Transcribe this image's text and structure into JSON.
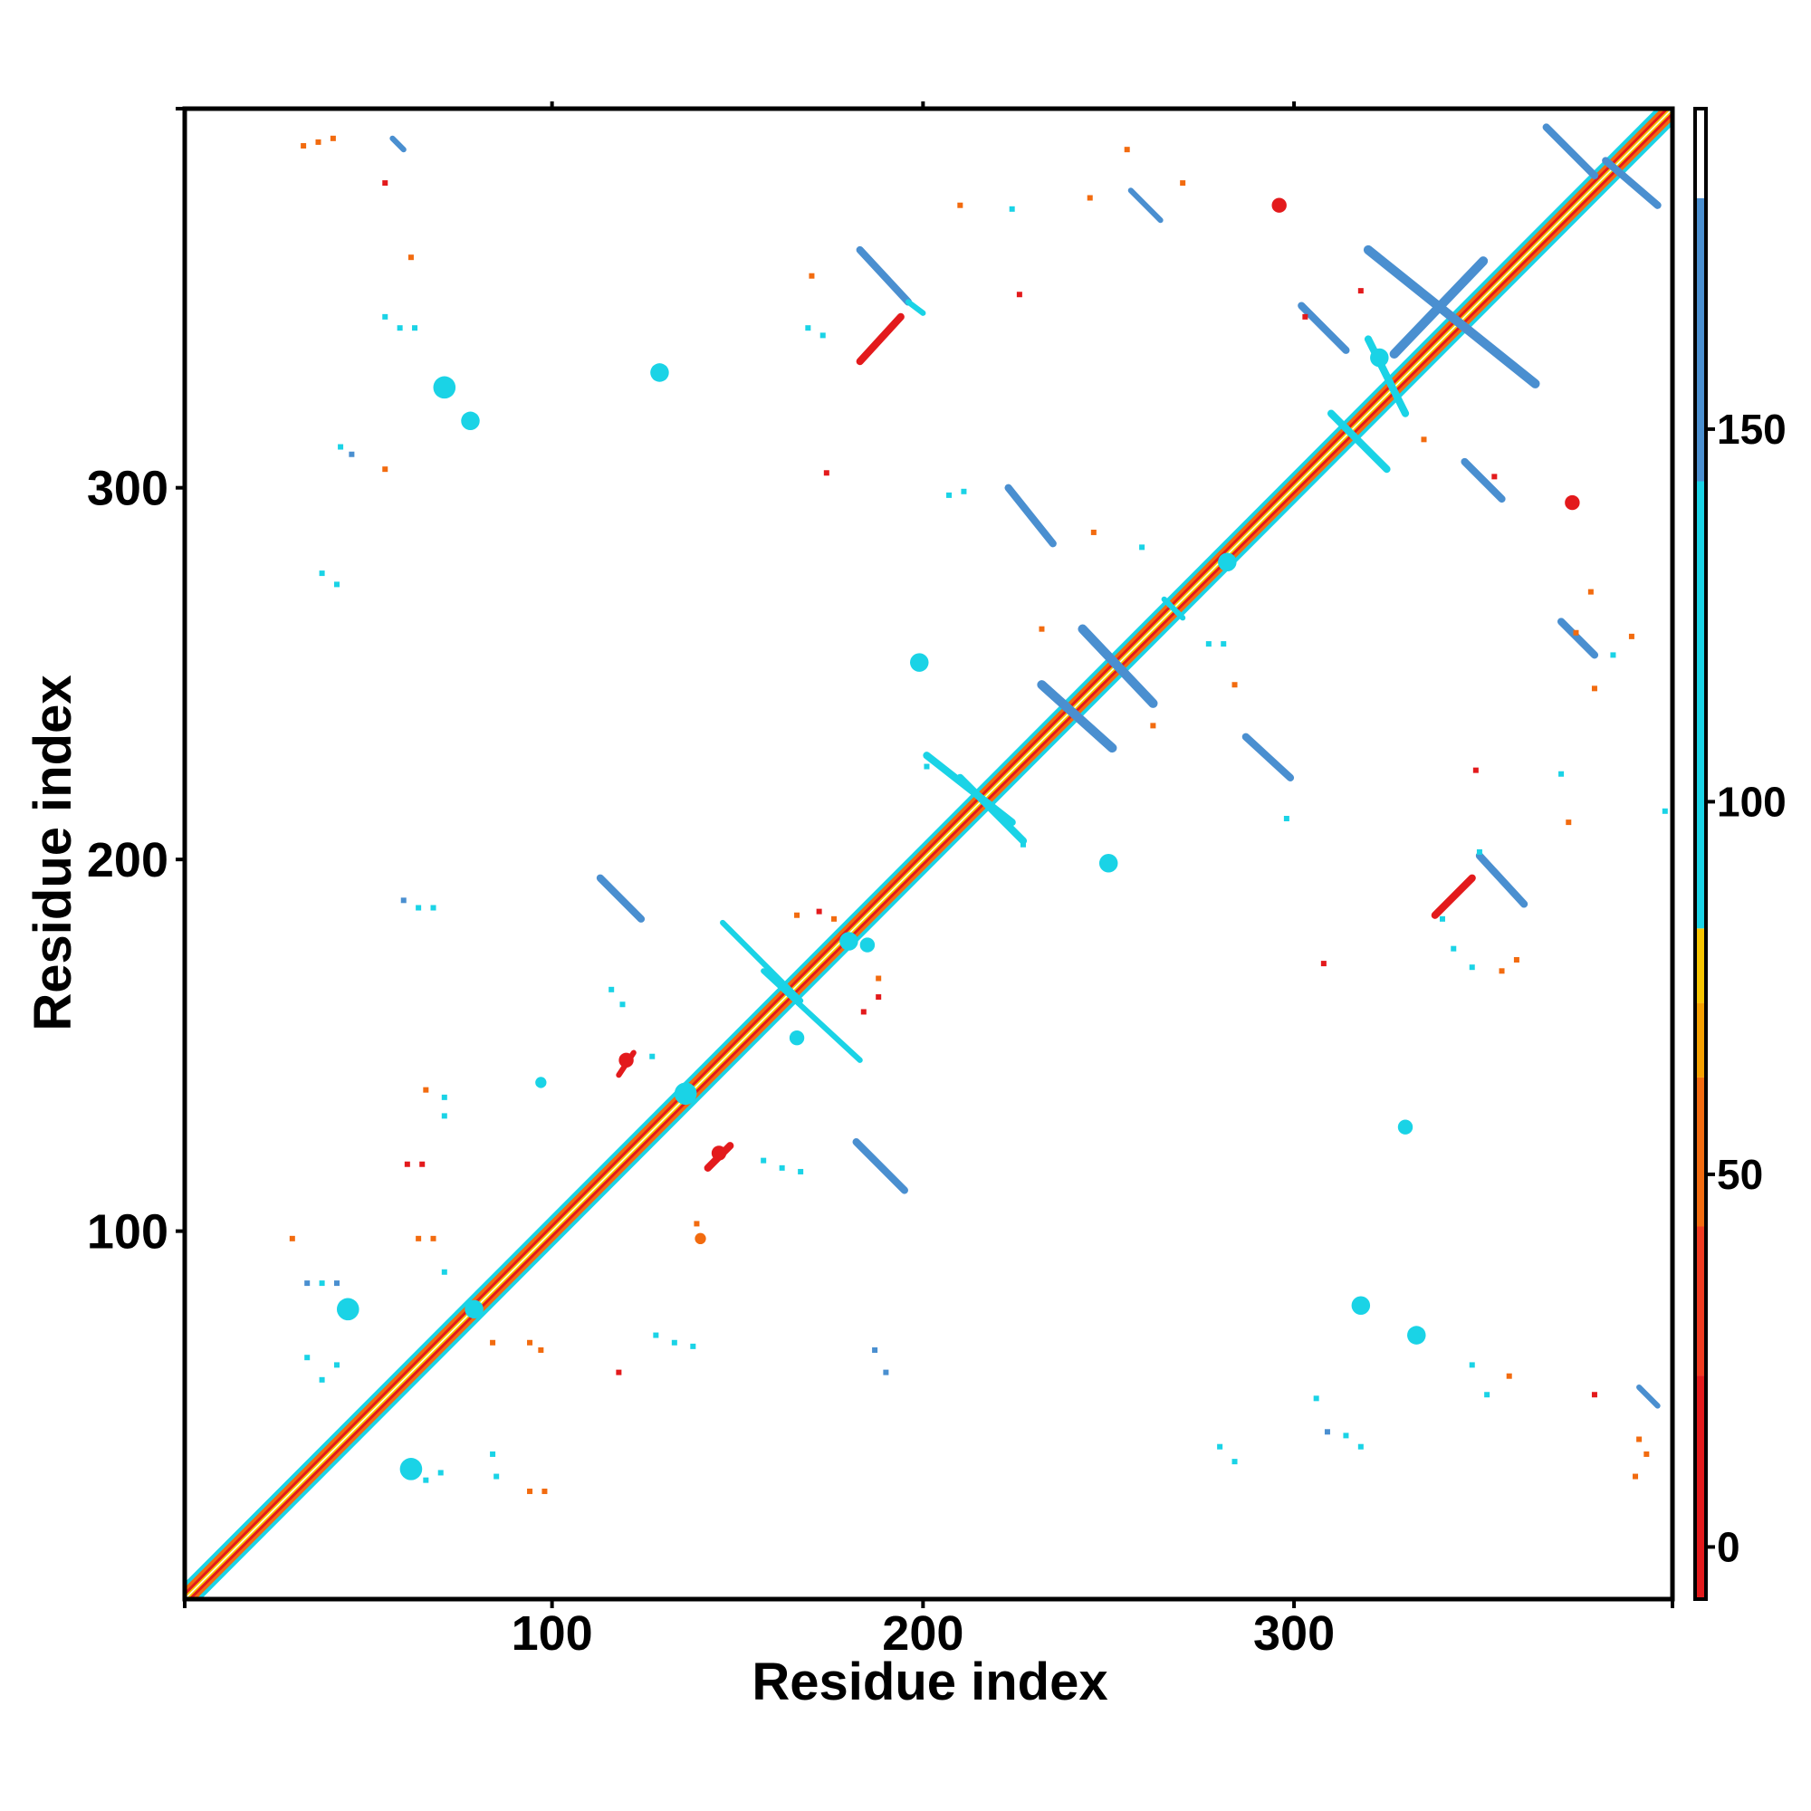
{
  "chart_data": {
    "type": "heatmap",
    "title": "",
    "xlabel": "Residue index",
    "ylabel": "Residue index",
    "xlim": [
      1,
      402
    ],
    "ylim": [
      1,
      402
    ],
    "x_ticks": [
      100,
      200,
      300
    ],
    "y_ticks": [
      100,
      200,
      300
    ],
    "grid": false,
    "legend": "right",
    "colorbar": {
      "ticks": [
        0,
        50,
        100,
        150
      ],
      "range": [
        -7,
        193
      ],
      "bands": [
        {
          "from": -7,
          "to": 23,
          "color": "#e31a1c"
        },
        {
          "from": 23,
          "to": 43,
          "color": "#f03b20"
        },
        {
          "from": 43,
          "to": 63,
          "color": "#f26b0f"
        },
        {
          "from": 63,
          "to": 73,
          "color": "#f5a000"
        },
        {
          "from": 73,
          "to": 83,
          "color": "#f7c500"
        },
        {
          "from": 83,
          "to": 143,
          "color": "#1ad3e6"
        },
        {
          "from": 143,
          "to": 181,
          "color": "#4a8fd0"
        },
        {
          "from": 181,
          "to": 193,
          "color": "#ffffff"
        }
      ]
    },
    "colors": {
      "red": "#e31a1c",
      "orange": "#f26b0f",
      "yellow": "#f7c500",
      "cyan": "#1ad3e6",
      "blue": "#4a8fd0"
    },
    "diagonal": {
      "from": 1,
      "to": 402
    },
    "segments": [
      {
        "x0": 57,
        "y0": 394,
        "x1": 60,
        "y1": 391,
        "color": "blue",
        "w": 1.5
      },
      {
        "x0": 368,
        "y0": 397,
        "x1": 381,
        "y1": 384,
        "color": "blue",
        "w": 2
      },
      {
        "x0": 384,
        "y0": 388,
        "x1": 398,
        "y1": 376,
        "color": "blue",
        "w": 2
      },
      {
        "x0": 256,
        "y0": 380,
        "x1": 264,
        "y1": 372,
        "color": "blue",
        "w": 1.5
      },
      {
        "x0": 183,
        "y0": 364,
        "x1": 196,
        "y1": 350,
        "color": "blue",
        "w": 2
      },
      {
        "x0": 196,
        "y0": 350,
        "x1": 200,
        "y1": 347,
        "color": "cyan",
        "w": 1.5
      },
      {
        "x0": 183,
        "y0": 334,
        "x1": 194,
        "y1": 346,
        "color": "red",
        "w": 2
      },
      {
        "x0": 320,
        "y0": 364,
        "x1": 365,
        "y1": 328,
        "color": "blue",
        "w": 2.5
      },
      {
        "x0": 327,
        "y0": 336,
        "x1": 351,
        "y1": 361,
        "color": "blue",
        "w": 2.5
      },
      {
        "x0": 302,
        "y0": 349,
        "x1": 314,
        "y1": 337,
        "color": "blue",
        "w": 2
      },
      {
        "x0": 346,
        "y0": 307,
        "x1": 356,
        "y1": 297,
        "color": "blue",
        "w": 2
      },
      {
        "x0": 223,
        "y0": 300,
        "x1": 235,
        "y1": 285,
        "color": "blue",
        "w": 2
      },
      {
        "x0": 243,
        "y0": 262,
        "x1": 262,
        "y1": 242,
        "color": "blue",
        "w": 2.5
      },
      {
        "x0": 232,
        "y0": 247,
        "x1": 251,
        "y1": 230,
        "color": "blue",
        "w": 2.5
      },
      {
        "x0": 372,
        "y0": 264,
        "x1": 381,
        "y1": 255,
        "color": "blue",
        "w": 2
      },
      {
        "x0": 287,
        "y0": 233,
        "x1": 299,
        "y1": 222,
        "color": "blue",
        "w": 2
      },
      {
        "x0": 201,
        "y0": 228,
        "x1": 224,
        "y1": 210,
        "color": "cyan",
        "w": 2
      },
      {
        "x0": 210,
        "y0": 222,
        "x1": 227,
        "y1": 205,
        "color": "cyan",
        "w": 2
      },
      {
        "x0": 113,
        "y0": 195,
        "x1": 124,
        "y1": 184,
        "color": "blue",
        "w": 2
      },
      {
        "x0": 350,
        "y0": 201,
        "x1": 362,
        "y1": 188,
        "color": "blue",
        "w": 2
      },
      {
        "x0": 338,
        "y0": 185,
        "x1": 348,
        "y1": 195,
        "color": "red",
        "w": 2
      },
      {
        "x0": 182,
        "y0": 124,
        "x1": 195,
        "y1": 111,
        "color": "blue",
        "w": 2
      },
      {
        "x0": 142,
        "y0": 117,
        "x1": 148,
        "y1": 123,
        "color": "red",
        "w": 2
      },
      {
        "x0": 118,
        "y0": 142,
        "x1": 122,
        "y1": 148,
        "color": "red",
        "w": 1.5
      },
      {
        "x0": 146,
        "y0": 183,
        "x1": 167,
        "y1": 162,
        "color": "cyan",
        "w": 1.5
      },
      {
        "x0": 157,
        "y0": 170,
        "x1": 183,
        "y1": 146,
        "color": "cyan",
        "w": 1.5
      },
      {
        "x0": 320,
        "y0": 340,
        "x1": 330,
        "y1": 320,
        "color": "cyan",
        "w": 2
      },
      {
        "x0": 310,
        "y0": 320,
        "x1": 325,
        "y1": 305,
        "color": "cyan",
        "w": 2
      },
      {
        "x0": 393,
        "y0": 58,
        "x1": 398,
        "y1": 53,
        "color": "blue",
        "w": 1.5
      },
      {
        "x0": 265,
        "y0": 270,
        "x1": 270,
        "y1": 265,
        "color": "cyan",
        "w": 1.5
      }
    ],
    "blobs": [
      {
        "x": 71,
        "y": 327,
        "r": 3,
        "color": "cyan"
      },
      {
        "x": 78,
        "y": 318,
        "r": 2.5,
        "color": "cyan"
      },
      {
        "x": 129,
        "y": 331,
        "r": 2.5,
        "color": "cyan"
      },
      {
        "x": 199,
        "y": 253,
        "r": 2.5,
        "color": "cyan"
      },
      {
        "x": 250,
        "y": 199,
        "r": 2.5,
        "color": "cyan"
      },
      {
        "x": 330,
        "y": 128,
        "r": 2,
        "color": "cyan"
      },
      {
        "x": 318,
        "y": 80,
        "r": 2.5,
        "color": "cyan"
      },
      {
        "x": 333,
        "y": 72,
        "r": 2.5,
        "color": "cyan"
      },
      {
        "x": 296,
        "y": 376,
        "r": 2,
        "color": "red"
      },
      {
        "x": 375,
        "y": 296,
        "r": 2,
        "color": "red"
      },
      {
        "x": 145,
        "y": 121,
        "r": 2,
        "color": "red"
      },
      {
        "x": 120,
        "y": 146,
        "r": 2,
        "color": "red"
      },
      {
        "x": 45,
        "y": 79,
        "r": 3,
        "color": "cyan"
      },
      {
        "x": 62,
        "y": 36,
        "r": 3,
        "color": "cyan"
      },
      {
        "x": 79,
        "y": 79,
        "r": 2.5,
        "color": "cyan"
      },
      {
        "x": 136,
        "y": 137,
        "r": 3,
        "color": "cyan"
      },
      {
        "x": 137,
        "y": 137,
        "r": 2,
        "color": "cyan"
      },
      {
        "x": 180,
        "y": 178,
        "r": 2.5,
        "color": "cyan"
      },
      {
        "x": 185,
        "y": 177,
        "r": 2,
        "color": "cyan"
      },
      {
        "x": 166,
        "y": 152,
        "r": 2,
        "color": "cyan"
      },
      {
        "x": 140,
        "y": 98,
        "r": 1.5,
        "color": "orange"
      },
      {
        "x": 97,
        "y": 140,
        "r": 1.5,
        "color": "cyan"
      },
      {
        "x": 282,
        "y": 280,
        "r": 2.5,
        "color": "cyan"
      },
      {
        "x": 323,
        "y": 335,
        "r": 2.5,
        "color": "cyan"
      }
    ],
    "specks": [
      {
        "x": 33,
        "y": 392,
        "color": "orange"
      },
      {
        "x": 37,
        "y": 393,
        "color": "orange"
      },
      {
        "x": 41,
        "y": 394,
        "color": "orange"
      },
      {
        "x": 55,
        "y": 382,
        "color": "red"
      },
      {
        "x": 62,
        "y": 362,
        "color": "orange"
      },
      {
        "x": 55,
        "y": 346,
        "color": "cyan"
      },
      {
        "x": 59,
        "y": 343,
        "color": "cyan"
      },
      {
        "x": 63,
        "y": 343,
        "color": "cyan"
      },
      {
        "x": 43,
        "y": 311,
        "color": "cyan"
      },
      {
        "x": 46,
        "y": 309,
        "color": "blue"
      },
      {
        "x": 55,
        "y": 305,
        "color": "orange"
      },
      {
        "x": 38,
        "y": 277,
        "color": "cyan"
      },
      {
        "x": 42,
        "y": 274,
        "color": "cyan"
      },
      {
        "x": 210,
        "y": 376,
        "color": "orange"
      },
      {
        "x": 224,
        "y": 375,
        "color": "cyan"
      },
      {
        "x": 245,
        "y": 378,
        "color": "orange"
      },
      {
        "x": 255,
        "y": 391,
        "color": "orange"
      },
      {
        "x": 270,
        "y": 382,
        "color": "orange"
      },
      {
        "x": 226,
        "y": 352,
        "color": "red"
      },
      {
        "x": 170,
        "y": 357,
        "color": "orange"
      },
      {
        "x": 169,
        "y": 343,
        "color": "cyan"
      },
      {
        "x": 173,
        "y": 341,
        "color": "cyan"
      },
      {
        "x": 174,
        "y": 304,
        "color": "red"
      },
      {
        "x": 207,
        "y": 298,
        "color": "cyan"
      },
      {
        "x": 211,
        "y": 299,
        "color": "cyan"
      },
      {
        "x": 246,
        "y": 288,
        "color": "orange"
      },
      {
        "x": 259,
        "y": 284,
        "color": "cyan"
      },
      {
        "x": 232,
        "y": 262,
        "color": "orange"
      },
      {
        "x": 262,
        "y": 236,
        "color": "orange"
      },
      {
        "x": 277,
        "y": 258,
        "color": "cyan"
      },
      {
        "x": 281,
        "y": 258,
        "color": "cyan"
      },
      {
        "x": 284,
        "y": 247,
        "color": "orange"
      },
      {
        "x": 298,
        "y": 211,
        "color": "cyan"
      },
      {
        "x": 335,
        "y": 313,
        "color": "orange"
      },
      {
        "x": 354,
        "y": 303,
        "color": "red"
      },
      {
        "x": 303,
        "y": 346,
        "color": "red"
      },
      {
        "x": 318,
        "y": 353,
        "color": "red"
      },
      {
        "x": 380,
        "y": 272,
        "color": "orange"
      },
      {
        "x": 376,
        "y": 261,
        "color": "orange"
      },
      {
        "x": 391,
        "y": 260,
        "color": "orange"
      },
      {
        "x": 386,
        "y": 255,
        "color": "cyan"
      },
      {
        "x": 381,
        "y": 246,
        "color": "orange"
      },
      {
        "x": 374,
        "y": 210,
        "color": "orange"
      },
      {
        "x": 372,
        "y": 223,
        "color": "cyan"
      },
      {
        "x": 349,
        "y": 224,
        "color": "red"
      },
      {
        "x": 400,
        "y": 213,
        "color": "cyan"
      },
      {
        "x": 340,
        "y": 184,
        "color": "cyan"
      },
      {
        "x": 343,
        "y": 176,
        "color": "cyan"
      },
      {
        "x": 348,
        "y": 171,
        "color": "cyan"
      },
      {
        "x": 356,
        "y": 170,
        "color": "orange"
      },
      {
        "x": 360,
        "y": 173,
        "color": "orange"
      },
      {
        "x": 308,
        "y": 172,
        "color": "red"
      },
      {
        "x": 60,
        "y": 189,
        "color": "blue"
      },
      {
        "x": 64,
        "y": 187,
        "color": "cyan"
      },
      {
        "x": 68,
        "y": 187,
        "color": "cyan"
      },
      {
        "x": 116,
        "y": 165,
        "color": "cyan"
      },
      {
        "x": 119,
        "y": 161,
        "color": "cyan"
      },
      {
        "x": 127,
        "y": 147,
        "color": "cyan"
      },
      {
        "x": 166,
        "y": 185,
        "color": "orange"
      },
      {
        "x": 172,
        "y": 186,
        "color": "red"
      },
      {
        "x": 176,
        "y": 184,
        "color": "orange"
      },
      {
        "x": 188,
        "y": 168,
        "color": "orange"
      },
      {
        "x": 188,
        "y": 163,
        "color": "red"
      },
      {
        "x": 184,
        "y": 159,
        "color": "red"
      },
      {
        "x": 66,
        "y": 138,
        "color": "orange"
      },
      {
        "x": 71,
        "y": 136,
        "color": "cyan"
      },
      {
        "x": 71,
        "y": 131,
        "color": "cyan"
      },
      {
        "x": 61,
        "y": 118,
        "color": "red"
      },
      {
        "x": 65,
        "y": 118,
        "color": "red"
      },
      {
        "x": 139,
        "y": 102,
        "color": "orange"
      },
      {
        "x": 157,
        "y": 119,
        "color": "cyan"
      },
      {
        "x": 162,
        "y": 117,
        "color": "cyan"
      },
      {
        "x": 167,
        "y": 116,
        "color": "cyan"
      },
      {
        "x": 30,
        "y": 98,
        "color": "orange"
      },
      {
        "x": 34,
        "y": 86,
        "color": "blue"
      },
      {
        "x": 38,
        "y": 86,
        "color": "cyan"
      },
      {
        "x": 42,
        "y": 86,
        "color": "blue"
      },
      {
        "x": 64,
        "y": 98,
        "color": "orange"
      },
      {
        "x": 68,
        "y": 98,
        "color": "orange"
      },
      {
        "x": 71,
        "y": 89,
        "color": "cyan"
      },
      {
        "x": 84,
        "y": 70,
        "color": "orange"
      },
      {
        "x": 94,
        "y": 70,
        "color": "orange"
      },
      {
        "x": 97,
        "y": 68,
        "color": "orange"
      },
      {
        "x": 118,
        "y": 62,
        "color": "red"
      },
      {
        "x": 128,
        "y": 72,
        "color": "cyan"
      },
      {
        "x": 133,
        "y": 70,
        "color": "cyan"
      },
      {
        "x": 138,
        "y": 69,
        "color": "cyan"
      },
      {
        "x": 187,
        "y": 68,
        "color": "blue"
      },
      {
        "x": 190,
        "y": 62,
        "color": "blue"
      },
      {
        "x": 66,
        "y": 33,
        "color": "cyan"
      },
      {
        "x": 70,
        "y": 35,
        "color": "cyan"
      },
      {
        "x": 84,
        "y": 40,
        "color": "cyan"
      },
      {
        "x": 85,
        "y": 34,
        "color": "cyan"
      },
      {
        "x": 94,
        "y": 30,
        "color": "orange"
      },
      {
        "x": 98,
        "y": 30,
        "color": "orange"
      },
      {
        "x": 38,
        "y": 60,
        "color": "cyan"
      },
      {
        "x": 34,
        "y": 66,
        "color": "cyan"
      },
      {
        "x": 42,
        "y": 64,
        "color": "cyan"
      },
      {
        "x": 306,
        "y": 55,
        "color": "cyan"
      },
      {
        "x": 309,
        "y": 46,
        "color": "blue"
      },
      {
        "x": 314,
        "y": 45,
        "color": "cyan"
      },
      {
        "x": 318,
        "y": 42,
        "color": "cyan"
      },
      {
        "x": 280,
        "y": 42,
        "color": "cyan"
      },
      {
        "x": 284,
        "y": 38,
        "color": "cyan"
      },
      {
        "x": 348,
        "y": 64,
        "color": "cyan"
      },
      {
        "x": 352,
        "y": 56,
        "color": "cyan"
      },
      {
        "x": 358,
        "y": 61,
        "color": "orange"
      },
      {
        "x": 381,
        "y": 56,
        "color": "red"
      },
      {
        "x": 393,
        "y": 44,
        "color": "orange"
      },
      {
        "x": 395,
        "y": 40,
        "color": "orange"
      },
      {
        "x": 392,
        "y": 34,
        "color": "orange"
      },
      {
        "x": 201,
        "y": 225,
        "color": "cyan"
      },
      {
        "x": 227,
        "y": 204,
        "color": "cyan"
      },
      {
        "x": 350,
        "y": 202,
        "color": "cyan"
      }
    ]
  }
}
